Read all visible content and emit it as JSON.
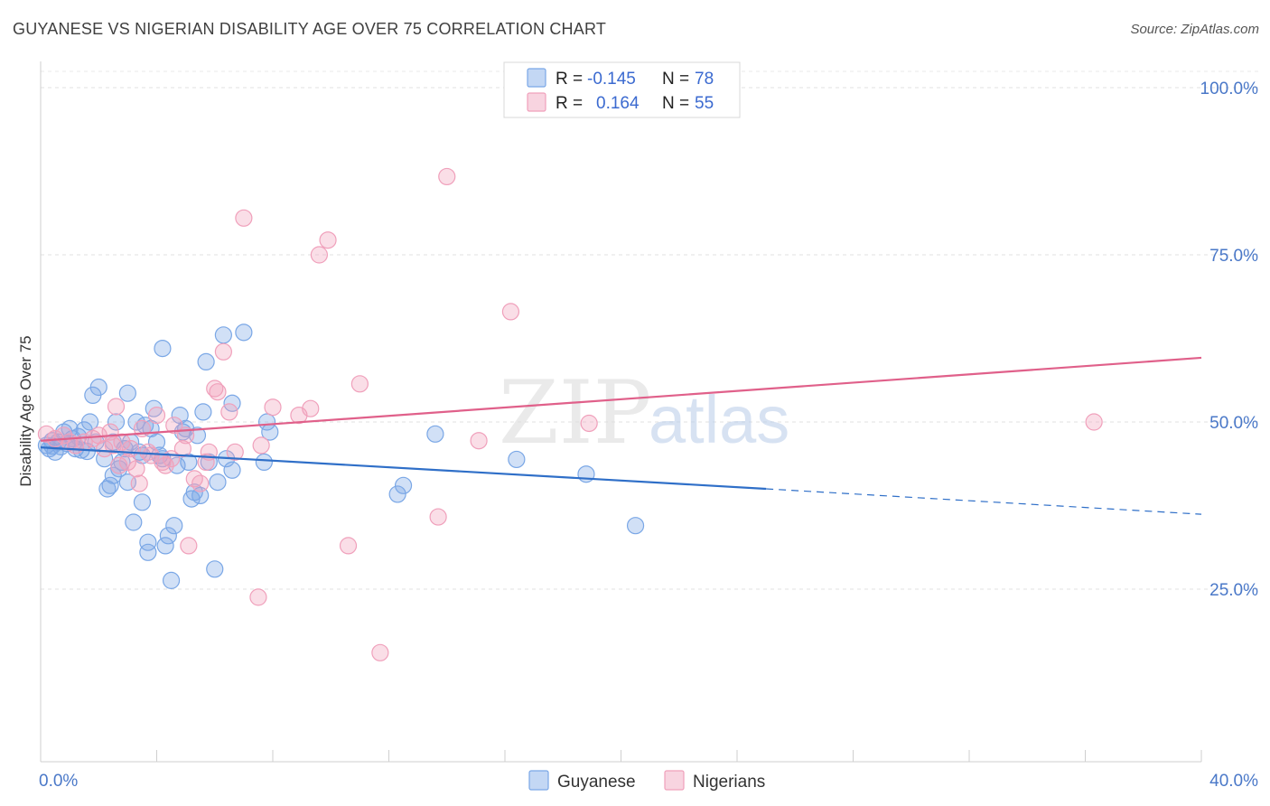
{
  "header": {
    "title": "GUYANESE VS NIGERIAN DISABILITY AGE OVER 75 CORRELATION CHART",
    "source": "Source: ZipAtlas.com"
  },
  "watermark": {
    "zip": "ZIP",
    "atlas": "atlas"
  },
  "legend": {
    "r_label": "R =",
    "n_label": "N =",
    "rows": [
      {
        "series": "Guyanese",
        "r": "-0.145",
        "n": "78",
        "color": "#7aa7e6"
      },
      {
        "series": "Nigerians",
        "r": "0.164",
        "n": "55",
        "color": "#f0a0bb"
      }
    ]
  },
  "chart_data": {
    "type": "scatter",
    "title": "GUYANESE VS NIGERIAN DISABILITY AGE OVER 75 CORRELATION CHART",
    "xlabel": "",
    "ylabel": "Disability Age Over 75",
    "xlim": [
      0,
      40
    ],
    "ylim": [
      5,
      105
    ],
    "x_tick_labels": [
      "0.0%",
      "40.0%"
    ],
    "y_ticks": [
      25,
      50,
      75,
      100
    ],
    "y_tick_labels": [
      "25.0%",
      "50.0%",
      "75.0%",
      "100.0%"
    ],
    "grid": true,
    "legend_position": "bottom-center",
    "series": [
      {
        "name": "Guyanese",
        "color": "#7aa7e6",
        "line_color": "#2f6fc8",
        "trend": {
          "x0": 0.0,
          "y0": 46.2,
          "x1": 25.0,
          "y1": 40.0,
          "x_end": 40.0,
          "y_end": 36.2
        },
        "points": [
          [
            0.2,
            46.5
          ],
          [
            0.3,
            46.0
          ],
          [
            0.4,
            47.2
          ],
          [
            0.5,
            45.5
          ],
          [
            0.6,
            47.0
          ],
          [
            0.7,
            46.3
          ],
          [
            0.8,
            48.5
          ],
          [
            0.9,
            46.8
          ],
          [
            1.0,
            49.0
          ],
          [
            1.1,
            47.5
          ],
          [
            1.2,
            46.0
          ],
          [
            1.3,
            47.8
          ],
          [
            1.4,
            45.8
          ],
          [
            1.5,
            48.8
          ],
          [
            1.6,
            45.6
          ],
          [
            1.7,
            50.0
          ],
          [
            1.8,
            54.0
          ],
          [
            1.9,
            47.0
          ],
          [
            2.0,
            55.2
          ],
          [
            2.2,
            44.5
          ],
          [
            2.3,
            40.0
          ],
          [
            2.4,
            40.5
          ],
          [
            2.5,
            47.0
          ],
          [
            2.5,
            42.0
          ],
          [
            2.6,
            50.0
          ],
          [
            2.7,
            43.0
          ],
          [
            2.8,
            44.0
          ],
          [
            2.9,
            46.0
          ],
          [
            3.0,
            54.3
          ],
          [
            3.0,
            41.0
          ],
          [
            3.1,
            47.0
          ],
          [
            3.2,
            35.0
          ],
          [
            3.3,
            50.0
          ],
          [
            3.4,
            45.5
          ],
          [
            3.5,
            38.0
          ],
          [
            3.5,
            45.0
          ],
          [
            3.6,
            49.5
          ],
          [
            3.7,
            32.0
          ],
          [
            3.7,
            30.5
          ],
          [
            3.8,
            49.0
          ],
          [
            3.9,
            52.0
          ],
          [
            4.0,
            47.0
          ],
          [
            4.1,
            45.0
          ],
          [
            4.2,
            44.5
          ],
          [
            4.2,
            61.0
          ],
          [
            4.3,
            31.5
          ],
          [
            4.4,
            33.0
          ],
          [
            4.5,
            26.3
          ],
          [
            4.6,
            34.5
          ],
          [
            4.7,
            43.5
          ],
          [
            4.8,
            51.0
          ],
          [
            4.9,
            48.5
          ],
          [
            5.0,
            49.0
          ],
          [
            5.1,
            44.0
          ],
          [
            5.2,
            38.5
          ],
          [
            5.3,
            39.5
          ],
          [
            5.4,
            48.0
          ],
          [
            5.5,
            39.0
          ],
          [
            5.6,
            51.5
          ],
          [
            5.7,
            59.0
          ],
          [
            5.8,
            44.0
          ],
          [
            6.0,
            28.0
          ],
          [
            6.1,
            41.0
          ],
          [
            6.3,
            63.0
          ],
          [
            6.4,
            44.5
          ],
          [
            6.6,
            52.8
          ],
          [
            6.6,
            42.8
          ],
          [
            7.0,
            63.4
          ],
          [
            7.7,
            44.0
          ],
          [
            7.8,
            50.0
          ],
          [
            7.9,
            48.5
          ],
          [
            12.3,
            39.2
          ],
          [
            12.5,
            40.5
          ],
          [
            13.6,
            48.2
          ],
          [
            16.4,
            44.4
          ],
          [
            18.8,
            42.2
          ],
          [
            20.5,
            34.5
          ],
          [
            0.4,
            46.4
          ]
        ]
      },
      {
        "name": "Nigerians",
        "color": "#f0a0bb",
        "line_color": "#e0608a",
        "trend": {
          "x0": 0.0,
          "y0": 47.2,
          "x1": 40.0,
          "y1": 59.6
        },
        "points": [
          [
            0.2,
            48.2
          ],
          [
            0.5,
            47.5
          ],
          [
            0.8,
            48.0
          ],
          [
            1.0,
            47.0
          ],
          [
            1.2,
            46.5
          ],
          [
            1.5,
            47.0
          ],
          [
            1.8,
            47.5
          ],
          [
            2.0,
            48.0
          ],
          [
            2.2,
            46.0
          ],
          [
            2.4,
            48.5
          ],
          [
            2.5,
            46.5
          ],
          [
            2.6,
            52.3
          ],
          [
            2.7,
            43.5
          ],
          [
            2.8,
            47.0
          ],
          [
            3.0,
            44.0
          ],
          [
            3.1,
            46.0
          ],
          [
            3.3,
            43.0
          ],
          [
            3.4,
            40.8
          ],
          [
            3.5,
            49.0
          ],
          [
            3.7,
            45.5
          ],
          [
            3.8,
            45.0
          ],
          [
            4.0,
            51.0
          ],
          [
            4.2,
            44.0
          ],
          [
            4.3,
            43.5
          ],
          [
            4.5,
            44.5
          ],
          [
            4.6,
            49.5
          ],
          [
            4.9,
            46.0
          ],
          [
            5.0,
            48.0
          ],
          [
            5.1,
            31.5
          ],
          [
            5.3,
            41.5
          ],
          [
            5.5,
            40.8
          ],
          [
            5.7,
            44.0
          ],
          [
            5.8,
            45.5
          ],
          [
            6.0,
            55.0
          ],
          [
            6.1,
            54.5
          ],
          [
            6.3,
            60.5
          ],
          [
            6.5,
            51.5
          ],
          [
            6.7,
            45.5
          ],
          [
            7.0,
            80.5
          ],
          [
            7.5,
            23.8
          ],
          [
            7.6,
            46.5
          ],
          [
            8.0,
            52.2
          ],
          [
            8.9,
            51.0
          ],
          [
            9.3,
            52.0
          ],
          [
            9.6,
            75.0
          ],
          [
            9.9,
            77.2
          ],
          [
            10.6,
            31.5
          ],
          [
            11.0,
            55.7
          ],
          [
            14.0,
            86.7
          ],
          [
            13.7,
            35.8
          ],
          [
            15.1,
            47.2
          ],
          [
            16.2,
            66.5
          ],
          [
            18.9,
            49.8
          ],
          [
            11.7,
            15.5
          ],
          [
            36.3,
            50.0
          ]
        ]
      }
    ]
  }
}
